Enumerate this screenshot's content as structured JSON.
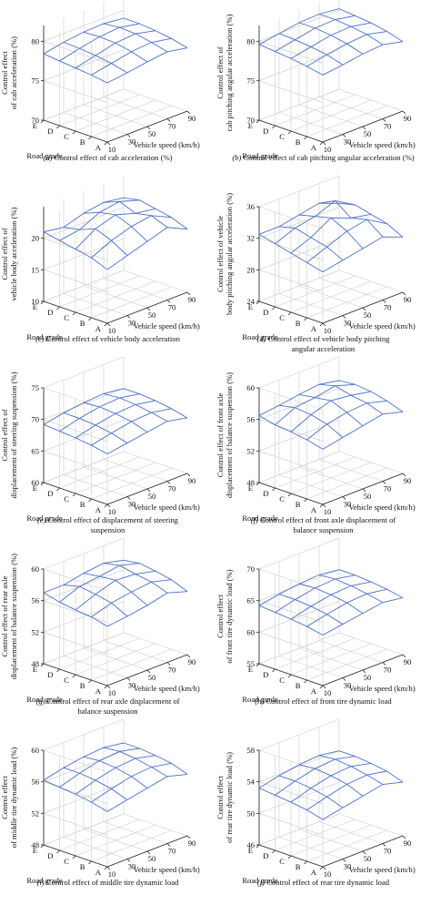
{
  "axes_common": {
    "xlabel": "Vehicle speed (km/h)",
    "ylabel": "Road grade",
    "x_ticks": [
      "10",
      "30",
      "50",
      "70",
      "90"
    ],
    "y_ticks": [
      "A",
      "B",
      "C",
      "D",
      "E"
    ],
    "surface_color": "#4a6fc9",
    "grid_color": "#cccccc"
  },
  "chart_data": [
    {
      "type": "surface3d",
      "id": "a",
      "caption_tag": "(a)",
      "caption_lines": [
        "Control effect of cab acceleration (%)"
      ],
      "zlabel_lines": [
        "Control effect",
        "of cab acceleration (%)"
      ],
      "zlim": [
        70,
        82
      ],
      "z_ticks": [
        70,
        75,
        80
      ],
      "x": [
        10,
        30,
        50,
        70,
        90
      ],
      "y": [
        "A",
        "B",
        "C",
        "D",
        "E"
      ],
      "z": [
        [
          77.5,
          77.8,
          78.2,
          78.5,
          78.0
        ],
        [
          77.8,
          78.3,
          78.8,
          79.0,
          78.5
        ],
        [
          78.0,
          78.6,
          79.2,
          79.4,
          78.8
        ],
        [
          78.2,
          78.8,
          79.3,
          79.5,
          79.0
        ],
        [
          78.4,
          78.9,
          79.2,
          79.3,
          79.0
        ]
      ]
    },
    {
      "type": "surface3d",
      "id": "b",
      "caption_tag": "(b)",
      "caption_lines": [
        "Control effect of cab pitching angular acceleration (%)"
      ],
      "zlabel_lines": [
        "Control effect of",
        "cab pitching angular acceleration (%)"
      ],
      "zlim": [
        70,
        82
      ],
      "z_ticks": [
        70,
        75,
        80
      ],
      "x": [
        10,
        30,
        50,
        70,
        90
      ],
      "y": [
        "A",
        "B",
        "C",
        "D",
        "E"
      ],
      "z": [
        [
          78.5,
          78.8,
          79.2,
          79.4,
          78.8
        ],
        [
          78.9,
          79.4,
          79.8,
          80.0,
          79.4
        ],
        [
          79.2,
          79.7,
          80.2,
          80.3,
          79.8
        ],
        [
          79.4,
          79.9,
          80.4,
          80.5,
          80.0
        ],
        [
          79.6,
          80.0,
          80.4,
          80.5,
          80.2
        ]
      ]
    },
    {
      "type": "surface3d",
      "id": "c",
      "caption_tag": "(c)",
      "caption_lines": [
        "Control effect of vehicle body acceleration"
      ],
      "zlabel_lines": [
        "Control effect of",
        "vehicle body acceleration (%)"
      ],
      "zlim": [
        10,
        25
      ],
      "z_ticks": [
        10,
        15,
        20
      ],
      "x": [
        10,
        30,
        50,
        70,
        90
      ],
      "y": [
        "A",
        "B",
        "C",
        "D",
        "E"
      ],
      "z": [
        [
          18.5,
          19.5,
          20.5,
          21.5,
          20.0
        ],
        [
          19.5,
          21.0,
          22.0,
          22.5,
          21.0
        ],
        [
          20.0,
          22.0,
          23.0,
          22.0,
          21.5
        ],
        [
          20.5,
          21.0,
          22.5,
          23.0,
          22.0
        ],
        [
          21.0,
          20.5,
          21.5,
          22.0,
          21.5
        ]
      ]
    },
    {
      "type": "surface3d",
      "id": "d",
      "caption_tag": "(d)",
      "caption_lines": [
        "Control effect of vehicle body pitching",
        "angular acceleration"
      ],
      "zlabel_lines": [
        "Control effect of vehicle",
        "body pitching angular acceleration (%)"
      ],
      "zlim": [
        24,
        36
      ],
      "z_ticks": [
        24,
        28,
        32,
        36
      ],
      "x": [
        10,
        30,
        50,
        70,
        90
      ],
      "y": [
        "A",
        "B",
        "C",
        "D",
        "E"
      ],
      "z": [
        [
          30.5,
          31.0,
          31.5,
          32.0,
          31.0
        ],
        [
          31.0,
          32.0,
          33.0,
          33.5,
          32.0
        ],
        [
          31.5,
          32.5,
          34.0,
          33.0,
          32.5
        ],
        [
          32.0,
          33.0,
          33.5,
          34.5,
          33.0
        ],
        [
          32.5,
          32.5,
          33.0,
          33.5,
          32.5
        ]
      ]
    },
    {
      "type": "surface3d",
      "id": "e",
      "caption_tag": "(e)",
      "caption_lines": [
        "Control effect of displacement of steering",
        "suspension"
      ],
      "zlabel_lines": [
        "Control effect of",
        "displacement of steering suspension (%)"
      ],
      "zlim": [
        60,
        75
      ],
      "z_ticks": [
        60,
        65,
        70,
        75
      ],
      "x": [
        10,
        30,
        50,
        70,
        90
      ],
      "y": [
        "A",
        "B",
        "C",
        "D",
        "E"
      ],
      "z": [
        [
          68.0,
          68.5,
          69.0,
          69.5,
          68.8
        ],
        [
          68.5,
          69.2,
          69.8,
          70.0,
          69.4
        ],
        [
          68.8,
          69.6,
          70.2,
          70.4,
          69.8
        ],
        [
          69.0,
          69.8,
          70.4,
          70.6,
          70.0
        ],
        [
          69.2,
          69.8,
          70.2,
          70.4,
          70.0
        ]
      ]
    },
    {
      "type": "surface3d",
      "id": "f",
      "caption_tag": "(f)",
      "caption_lines": [
        "Control effect of front axle displacement of",
        "balance suspension"
      ],
      "zlabel_lines": [
        "Control effect of front axle",
        "displacement of balance suspension (%)"
      ],
      "zlim": [
        48,
        60
      ],
      "z_ticks": [
        48,
        52,
        56,
        60
      ],
      "x": [
        10,
        30,
        50,
        70,
        90
      ],
      "y": [
        "A",
        "B",
        "C",
        "D",
        "E"
      ],
      "z": [
        [
          55.0,
          55.5,
          56.0,
          56.5,
          55.8
        ],
        [
          55.5,
          56.5,
          57.0,
          57.2,
          56.5
        ],
        [
          55.8,
          57.0,
          57.8,
          57.5,
          57.0
        ],
        [
          56.0,
          57.2,
          57.5,
          58.0,
          57.2
        ],
        [
          56.5,
          56.8,
          57.2,
          57.5,
          57.0
        ]
      ]
    },
    {
      "type": "surface3d",
      "id": "g",
      "caption_tag": "(g)",
      "caption_lines": [
        "Control effect of rear axle displacement of",
        "balance suspension"
      ],
      "zlabel_lines": [
        "Control effect of rear axle",
        "displacement of balance suspension (%)"
      ],
      "zlim": [
        48,
        60
      ],
      "z_ticks": [
        48,
        52,
        56,
        60
      ],
      "x": [
        10,
        30,
        50,
        70,
        90
      ],
      "y": [
        "A",
        "B",
        "C",
        "D",
        "E"
      ],
      "z": [
        [
          55.5,
          55.8,
          56.2,
          56.8,
          56.0
        ],
        [
          56.0,
          56.8,
          57.2,
          57.5,
          56.8
        ],
        [
          56.2,
          57.2,
          58.0,
          57.8,
          57.2
        ],
        [
          56.5,
          57.5,
          57.8,
          58.2,
          57.5
        ],
        [
          57.0,
          57.0,
          57.5,
          57.8,
          57.2
        ]
      ]
    },
    {
      "type": "surface3d",
      "id": "h",
      "caption_tag": "(h)",
      "caption_lines": [
        "Control effect of front tire dynamic load"
      ],
      "zlabel_lines": [
        "Control effect",
        "of front tire dynamic load (%)"
      ],
      "zlim": [
        55,
        70
      ],
      "z_ticks": [
        55,
        60,
        65,
        70
      ],
      "x": [
        10,
        30,
        50,
        70,
        90
      ],
      "y": [
        "A",
        "B",
        "C",
        "D",
        "E"
      ],
      "z": [
        [
          63.0,
          63.5,
          64.0,
          64.5,
          64.0
        ],
        [
          63.5,
          64.2,
          64.8,
          65.0,
          64.5
        ],
        [
          63.8,
          64.6,
          65.2,
          65.4,
          64.8
        ],
        [
          64.0,
          64.8,
          65.4,
          65.6,
          65.0
        ],
        [
          64.2,
          64.8,
          65.2,
          65.4,
          65.0
        ]
      ]
    },
    {
      "type": "surface3d",
      "id": "i",
      "caption_tag": "(i)",
      "caption_lines": [
        "Control effect of middle tire dynamic load"
      ],
      "zlabel_lines": [
        "Control effect",
        "of middle tire dynamic load (%)"
      ],
      "zlim": [
        48,
        60
      ],
      "z_ticks": [
        48,
        52,
        56,
        60
      ],
      "x": [
        10,
        30,
        50,
        70,
        90
      ],
      "y": [
        "A",
        "B",
        "C",
        "D",
        "E"
      ],
      "z": [
        [
          55.0,
          55.5,
          56.0,
          56.5,
          55.8
        ],
        [
          55.5,
          56.2,
          56.8,
          57.0,
          56.5
        ],
        [
          55.8,
          56.6,
          57.2,
          57.4,
          56.8
        ],
        [
          56.0,
          56.8,
          57.4,
          57.6,
          57.0
        ],
        [
          56.2,
          56.8,
          57.2,
          57.4,
          57.0
        ]
      ]
    },
    {
      "type": "surface3d",
      "id": "j",
      "caption_tag": "(j)",
      "caption_lines": [
        "Control effect of rear tire dynamic load"
      ],
      "zlabel_lines": [
        "Control effect",
        "of rear tire dynamic load (%)"
      ],
      "zlim": [
        46,
        58
      ],
      "z_ticks": [
        46,
        50,
        54,
        58
      ],
      "x": [
        10,
        30,
        50,
        70,
        90
      ],
      "y": [
        "A",
        "B",
        "C",
        "D",
        "E"
      ],
      "z": [
        [
          52.0,
          52.5,
          53.0,
          53.5,
          52.8
        ],
        [
          52.5,
          53.2,
          53.8,
          54.0,
          53.5
        ],
        [
          52.8,
          53.6,
          54.2,
          54.4,
          53.8
        ],
        [
          53.0,
          53.8,
          54.4,
          54.6,
          54.0
        ],
        [
          53.2,
          53.8,
          54.2,
          54.4,
          54.0
        ]
      ]
    }
  ]
}
